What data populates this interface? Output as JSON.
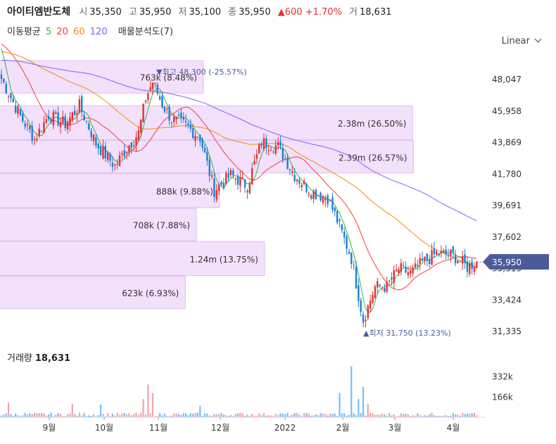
{
  "header": {
    "name": "아이티엠반도체",
    "open_label": "시",
    "open": "35,350",
    "high_label": "고",
    "high": "35,950",
    "low_label": "저",
    "low": "35,100",
    "close_label": "종",
    "close": "35,950",
    "change": "▲600 +1.70%",
    "volume_label": "거",
    "volume": "18,631"
  },
  "ma_legend": {
    "title": "이동평균",
    "items": [
      {
        "label": "5",
        "color": "#2fb344"
      },
      {
        "label": "20",
        "color": "#f03e3e"
      },
      {
        "label": "60",
        "color": "#f08c00"
      },
      {
        "label": "120",
        "color": "#845ef7"
      }
    ],
    "analysis": "매물분석도(7)"
  },
  "scale_selector": "Linear",
  "colors": {
    "up": "#e03131",
    "down": "#1c7ed6",
    "profile": "#f3e0fb",
    "profile_border": "#dcc0ee",
    "price_tag": "#4b5a99"
  },
  "chart_data": {
    "type": "candlestick",
    "y_axis_ticks": [
      "48,047",
      "45,958",
      "43,869",
      "41,780",
      "39,691",
      "37,602",
      "35,513",
      "33,424",
      "31,335"
    ],
    "y_tick_values": [
      48047,
      45958,
      43869,
      41780,
      39691,
      37602,
      35513,
      33424,
      31335
    ],
    "x_axis_labels": [
      "9월",
      "10월",
      "11월",
      "12월",
      "2022",
      "2월",
      "3월",
      "4월"
    ],
    "current_price_label": "35,950",
    "current_price": 35950,
    "high_annotation": "▼최고 48,300 (-25.57%)",
    "low_annotation": "▲최저 31,750 (13.23%)",
    "volume_profile": [
      {
        "label": "763k (8.48%)",
        "price_low": 47100,
        "price_high": 49300,
        "share": 8.48
      },
      {
        "label": "2.38m (26.50%)",
        "price_low": 44000,
        "price_high": 46300,
        "share": 26.5
      },
      {
        "label": "2.39m (26.57%)",
        "price_low": 41800,
        "price_high": 44000,
        "share": 26.57
      },
      {
        "label": "888k (9.88%)",
        "price_low": 39500,
        "price_high": 41800,
        "share": 9.88
      },
      {
        "label": "708k (7.88%)",
        "price_low": 37300,
        "price_high": 39500,
        "share": 7.88
      },
      {
        "label": "1.24m (13.75%)",
        "price_low": 35000,
        "price_high": 37300,
        "share": 13.75
      },
      {
        "label": "623k (6.93%)",
        "price_low": 32800,
        "price_high": 35000,
        "share": 6.93
      }
    ],
    "keypoints": [
      {
        "x": 0,
        "v": 48100
      },
      {
        "x": 8,
        "v": 45600
      },
      {
        "x": 14,
        "v": 44100
      },
      {
        "x": 20,
        "v": 45700
      },
      {
        "x": 27,
        "v": 45100
      },
      {
        "x": 33,
        "v": 46300
      },
      {
        "x": 40,
        "v": 43800
      },
      {
        "x": 48,
        "v": 42300
      },
      {
        "x": 53,
        "v": 43500
      },
      {
        "x": 58,
        "v": 44500
      },
      {
        "x": 61,
        "v": 46800
      },
      {
        "x": 64,
        "v": 47900
      },
      {
        "x": 68,
        "v": 46400
      },
      {
        "x": 72,
        "v": 45400
      },
      {
        "x": 78,
        "v": 45000
      },
      {
        "x": 84,
        "v": 44200
      },
      {
        "x": 90,
        "v": 40700
      },
      {
        "x": 97,
        "v": 41700
      },
      {
        "x": 104,
        "v": 41000
      },
      {
        "x": 110,
        "v": 43900
      },
      {
        "x": 117,
        "v": 43600
      },
      {
        "x": 124,
        "v": 41700
      },
      {
        "x": 131,
        "v": 40600
      },
      {
        "x": 138,
        "v": 40200
      },
      {
        "x": 142,
        "v": 38700
      },
      {
        "x": 148,
        "v": 36200
      },
      {
        "x": 153,
        "v": 32100
      },
      {
        "x": 158,
        "v": 34300
      },
      {
        "x": 163,
        "v": 34300
      },
      {
        "x": 168,
        "v": 35500
      },
      {
        "x": 173,
        "v": 35200
      },
      {
        "x": 178,
        "v": 35900
      },
      {
        "x": 184,
        "v": 36500
      },
      {
        "x": 191,
        "v": 36400
      },
      {
        "x": 197,
        "v": 35600
      },
      {
        "x": 201,
        "v": 35950
      }
    ],
    "volume_axis_ticks": [
      "332k",
      "166k"
    ],
    "volume_tick_values": [
      332000,
      166000
    ],
    "volume_title": "거래량",
    "volume_value": "18,631",
    "volume_spikes": [
      {
        "x": 62,
        "v": 270000
      },
      {
        "x": 64,
        "v": 200000
      },
      {
        "x": 60,
        "v": 150000
      },
      {
        "x": 143,
        "v": 200000
      },
      {
        "x": 148,
        "v": 420000
      },
      {
        "x": 153,
        "v": 250000
      },
      {
        "x": 151,
        "v": 150000
      },
      {
        "x": 155,
        "v": 110000
      },
      {
        "x": 30,
        "v": 110000
      },
      {
        "x": 3,
        "v": 120000
      },
      {
        "x": 42,
        "v": 105000
      },
      {
        "x": 84,
        "v": 95000
      }
    ]
  }
}
